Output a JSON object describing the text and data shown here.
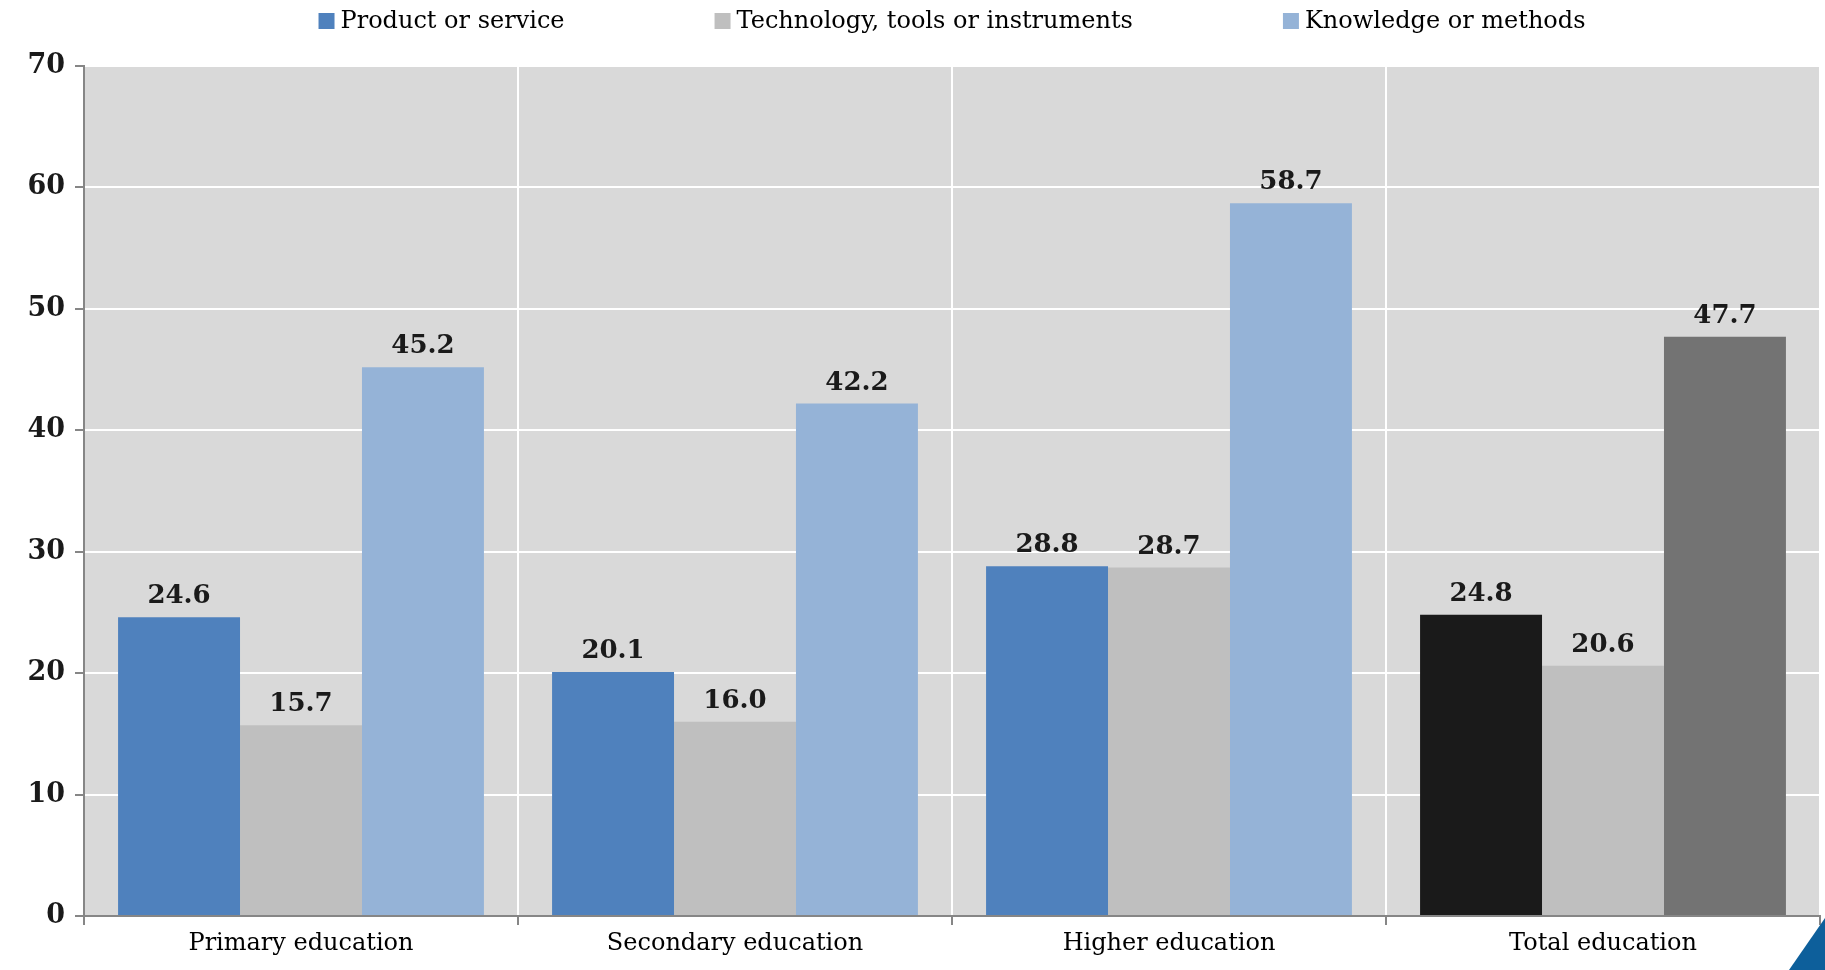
{
  "chart_data": {
    "type": "bar",
    "categories": [
      "Primary education",
      "Secondary education",
      "Higher education",
      "Total education"
    ],
    "series": [
      {
        "name": "Product or service",
        "color": "#4f81bd",
        "colors": [
          "#4f81bd",
          "#4f81bd",
          "#4f81bd",
          "#1a1a1a"
        ],
        "values": [
          24.6,
          20.1,
          28.8,
          24.8
        ],
        "value_labels": [
          "24.6",
          "20.1",
          "28.8",
          "24.8"
        ]
      },
      {
        "name": "Technology, tools or instruments",
        "color": "#bfbfbf",
        "values": [
          15.7,
          16.0,
          28.7,
          20.6
        ],
        "value_labels": [
          "15.7",
          "16.0",
          "28.7",
          "20.6"
        ]
      },
      {
        "name": "Knowledge or methods",
        "color": "#95b3d7",
        "colors": [
          "#95b3d7",
          "#95b3d7",
          "#95b3d7",
          "#737373"
        ],
        "values": [
          45.2,
          42.2,
          58.7,
          47.7
        ],
        "value_labels": [
          "45.2",
          "42.2",
          "58.7",
          "47.7"
        ]
      }
    ],
    "ylim": [
      0,
      70
    ],
    "yticks": [
      0,
      10,
      20,
      30,
      40,
      50,
      60,
      70
    ],
    "grid": true,
    "legend": "top"
  }
}
